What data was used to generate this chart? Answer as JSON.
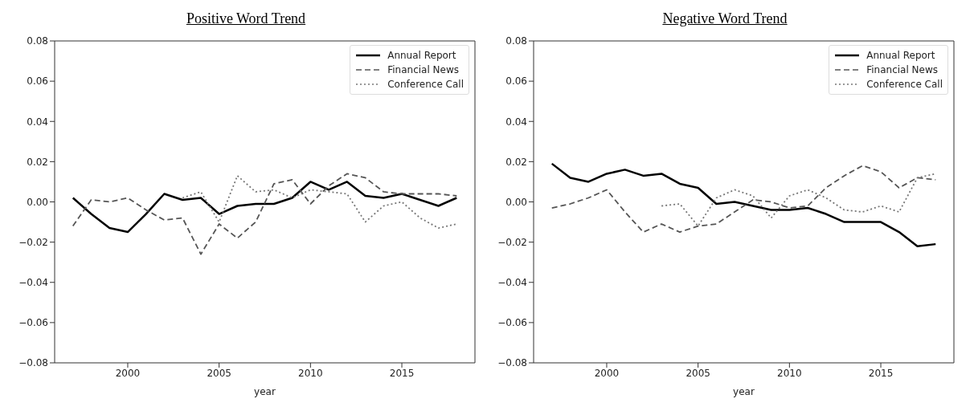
{
  "chart_data": [
    {
      "type": "line",
      "title": "Positive Word Trend",
      "xlabel": "year",
      "x": [
        1997,
        1998,
        1999,
        2000,
        2001,
        2002,
        2003,
        2004,
        2005,
        2006,
        2007,
        2008,
        2009,
        2010,
        2011,
        2012,
        2013,
        2014,
        2015,
        2016,
        2017,
        2018
      ],
      "xlim": [
        1996,
        2019
      ],
      "xticks": [
        2000,
        2005,
        2010,
        2015
      ],
      "ylim": [
        -0.08,
        0.08
      ],
      "yticks": [
        {
          "value": -0.08,
          "label": "−0.08"
        },
        {
          "value": -0.06,
          "label": "−0.06"
        },
        {
          "value": -0.04,
          "label": "−0.04"
        },
        {
          "value": -0.02,
          "label": "−0.02"
        },
        {
          "value": 0,
          "label": "0.00"
        },
        {
          "value": 0.02,
          "label": "0.02"
        },
        {
          "value": 0.04,
          "label": "0.04"
        },
        {
          "value": 0.06,
          "label": "0.06"
        },
        {
          "value": 0.08,
          "label": "0.08"
        }
      ],
      "legend": "top right",
      "marker": "none",
      "series": [
        {
          "name": "Annual Report",
          "color": "#000000",
          "line_style": "solid",
          "values": [
            0.002,
            -0.006,
            -0.013,
            -0.015,
            -0.006,
            0.004,
            0.001,
            0.002,
            -0.006,
            -0.002,
            -0.001,
            -0.001,
            0.002,
            0.01,
            0.006,
            0.01,
            0.003,
            0.002,
            0.004,
            0.001,
            -0.002,
            0.002
          ]
        },
        {
          "name": "Financial News",
          "color": "#555555",
          "line_style": "dashed",
          "values": [
            -0.012,
            0.001,
            0,
            0.002,
            -0.004,
            -0.009,
            -0.008,
            -0.026,
            -0.011,
            -0.018,
            -0.01,
            0.009,
            0.011,
            -0.001,
            0.008,
            0.014,
            0.012,
            0.005,
            0.004,
            0.004,
            0.004,
            0.003
          ]
        },
        {
          "name": "Conference Call",
          "color": "#777777",
          "line_style": "dotted",
          "values": [
            null,
            null,
            null,
            null,
            null,
            null,
            0.002,
            0.005,
            -0.01,
            0.013,
            0.005,
            0.006,
            0.002,
            0.006,
            0.005,
            0.004,
            -0.01,
            -0.002,
            0,
            -0.008,
            -0.013,
            -0.011
          ]
        }
      ]
    },
    {
      "type": "line",
      "title": "Negative Word Trend",
      "xlabel": "year",
      "x": [
        1997,
        1998,
        1999,
        2000,
        2001,
        2002,
        2003,
        2004,
        2005,
        2006,
        2007,
        2008,
        2009,
        2010,
        2011,
        2012,
        2013,
        2014,
        2015,
        2016,
        2017,
        2018
      ],
      "xlim": [
        1996,
        2019
      ],
      "xticks": [
        2000,
        2005,
        2010,
        2015
      ],
      "ylim": [
        -0.08,
        0.08
      ],
      "yticks": [
        {
          "value": -0.08,
          "label": "−0.08"
        },
        {
          "value": -0.06,
          "label": "−0.06"
        },
        {
          "value": -0.04,
          "label": "−0.04"
        },
        {
          "value": -0.02,
          "label": "−0.02"
        },
        {
          "value": 0,
          "label": "0.00"
        },
        {
          "value": 0.02,
          "label": "0.02"
        },
        {
          "value": 0.04,
          "label": "0.04"
        },
        {
          "value": 0.06,
          "label": "0.06"
        },
        {
          "value": 0.08,
          "label": "0.08"
        }
      ],
      "legend": "top right",
      "marker": "none",
      "series": [
        {
          "name": "Annual Report",
          "color": "#000000",
          "line_style": "solid",
          "values": [
            0.019,
            0.012,
            0.01,
            0.014,
            0.016,
            0.013,
            0.014,
            0.009,
            0.007,
            -0.001,
            0,
            -0.002,
            -0.004,
            -0.004,
            -0.003,
            -0.006,
            -0.01,
            -0.01,
            -0.01,
            -0.015,
            -0.022,
            -0.021
          ]
        },
        {
          "name": "Financial News",
          "color": "#555555",
          "line_style": "dashed",
          "values": [
            -0.003,
            -0.001,
            0.002,
            0.006,
            -0.005,
            -0.015,
            -0.011,
            -0.015,
            -0.012,
            -0.011,
            -0.005,
            0.001,
            0,
            -0.003,
            -0.002,
            0.007,
            0.013,
            0.018,
            0.015,
            0.007,
            0.012,
            0.011
          ]
        },
        {
          "name": "Conference Call",
          "color": "#777777",
          "line_style": "dotted",
          "values": [
            null,
            null,
            null,
            null,
            null,
            null,
            -0.002,
            -0.001,
            -0.012,
            0.002,
            0.006,
            0.003,
            -0.008,
            0.003,
            0.006,
            0.002,
            -0.004,
            -0.005,
            -0.002,
            -0.005,
            0.012,
            0.014
          ]
        }
      ]
    }
  ]
}
